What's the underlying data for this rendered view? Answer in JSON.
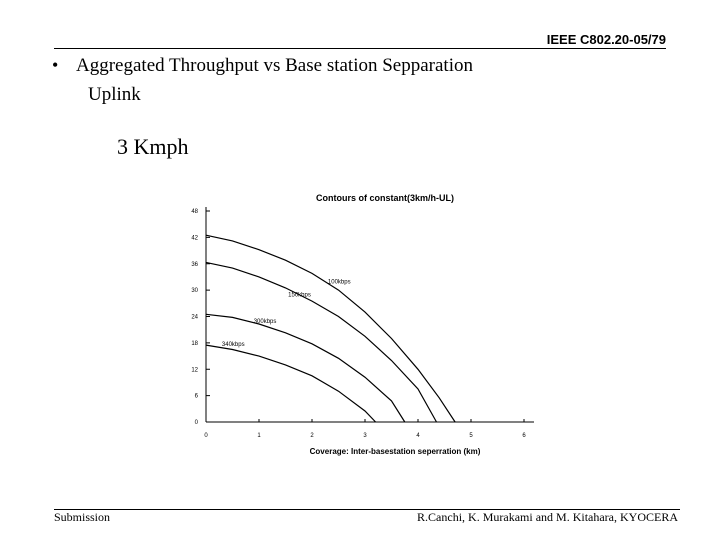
{
  "header": {
    "doc_code": "IEEE C802.20-05/79"
  },
  "slide": {
    "bullet": "•",
    "title": "Aggregated Throughput vs Base station Sepparation",
    "subtitle": "Uplink",
    "speed": "3 Kmph"
  },
  "footer": {
    "left": "Submission",
    "right": "R.Canchi, K. Murakami and M. Kitahara, KYOCERA"
  },
  "chart_data": {
    "type": "line",
    "title": "Contours of constant(3km/h-UL)",
    "xlabel": "Coverage: Inter-basestation seperration (km)",
    "ylabel": "",
    "xlim": [
      0,
      6
    ],
    "ylim": [
      0,
      48
    ],
    "x_ticks": [
      "0",
      "1",
      "2",
      "3",
      "4",
      "5",
      "6"
    ],
    "y_ticks": [
      "0",
      "6",
      "12",
      "18",
      "24",
      "30",
      "36",
      "42",
      "48"
    ],
    "grid": false,
    "series": [
      {
        "name": "100kbps",
        "points": [
          [
            0,
            42.5
          ],
          [
            0.5,
            41.2
          ],
          [
            1,
            39.2
          ],
          [
            1.5,
            36.8
          ],
          [
            2,
            33.8
          ],
          [
            2.5,
            30
          ],
          [
            3,
            25
          ],
          [
            3.5,
            19
          ],
          [
            4,
            12
          ],
          [
            4.4,
            5.5
          ],
          [
            4.7,
            0
          ]
        ]
      },
      {
        "name": "150kbps",
        "points": [
          [
            0,
            36.3
          ],
          [
            0.5,
            35
          ],
          [
            1,
            33
          ],
          [
            1.5,
            30.5
          ],
          [
            2,
            27.5
          ],
          [
            2.5,
            24
          ],
          [
            3,
            19.5
          ],
          [
            3.5,
            14
          ],
          [
            4,
            7.5
          ],
          [
            4.35,
            0
          ]
        ]
      },
      {
        "name": "300kbps",
        "points": [
          [
            0,
            24.5
          ],
          [
            0.5,
            23.8
          ],
          [
            1,
            22.3
          ],
          [
            1.5,
            20.3
          ],
          [
            2,
            17.8
          ],
          [
            2.5,
            14.5
          ],
          [
            3,
            10.2
          ],
          [
            3.5,
            4.8
          ],
          [
            3.75,
            0
          ]
        ]
      },
      {
        "name": "340kbps",
        "points": [
          [
            0,
            17.5
          ],
          [
            0.5,
            16.5
          ],
          [
            1,
            15
          ],
          [
            1.5,
            13
          ],
          [
            2,
            10.5
          ],
          [
            2.5,
            7
          ],
          [
            3,
            2.5
          ],
          [
            3.2,
            0
          ]
        ]
      }
    ]
  }
}
